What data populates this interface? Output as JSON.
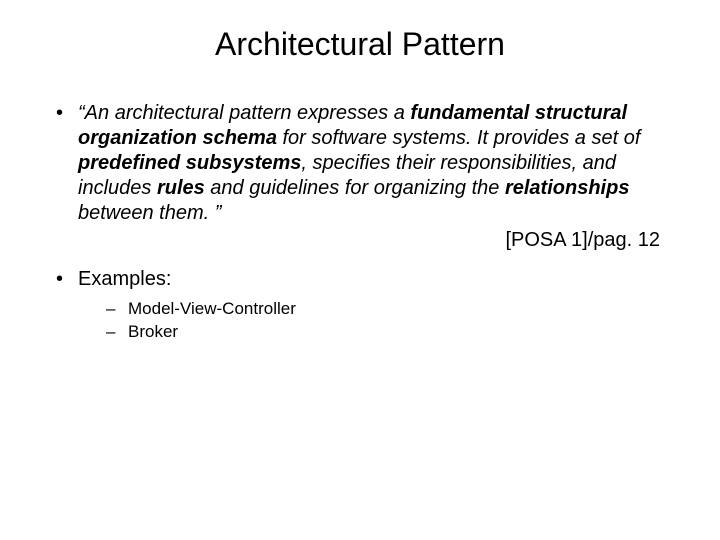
{
  "title": "Architectural Pattern",
  "def": {
    "open_quote": "“",
    "seg1": "An architectural pattern expresses a ",
    "b1": "fundamental structural organization schema",
    "seg2": " for software systems. It provides a set of ",
    "b2": "predefined subsystems",
    "seg3": ", specifies their responsibilities, and includes ",
    "b3": "rules",
    "seg4": " and guidelines for organizing the ",
    "b4": "relationships",
    "seg5": " between them. ”"
  },
  "citation": "[POSA 1]/pag. 12",
  "examples_label": "Examples:",
  "examples": {
    "0": "Model-View-Controller",
    "1": "Broker"
  },
  "style": {
    "background_color": "#ffffff",
    "text_color": "#000000",
    "title_fontsize": 32,
    "body_fontsize": 20,
    "sub_fontsize": 17,
    "font_family": "Arial"
  }
}
